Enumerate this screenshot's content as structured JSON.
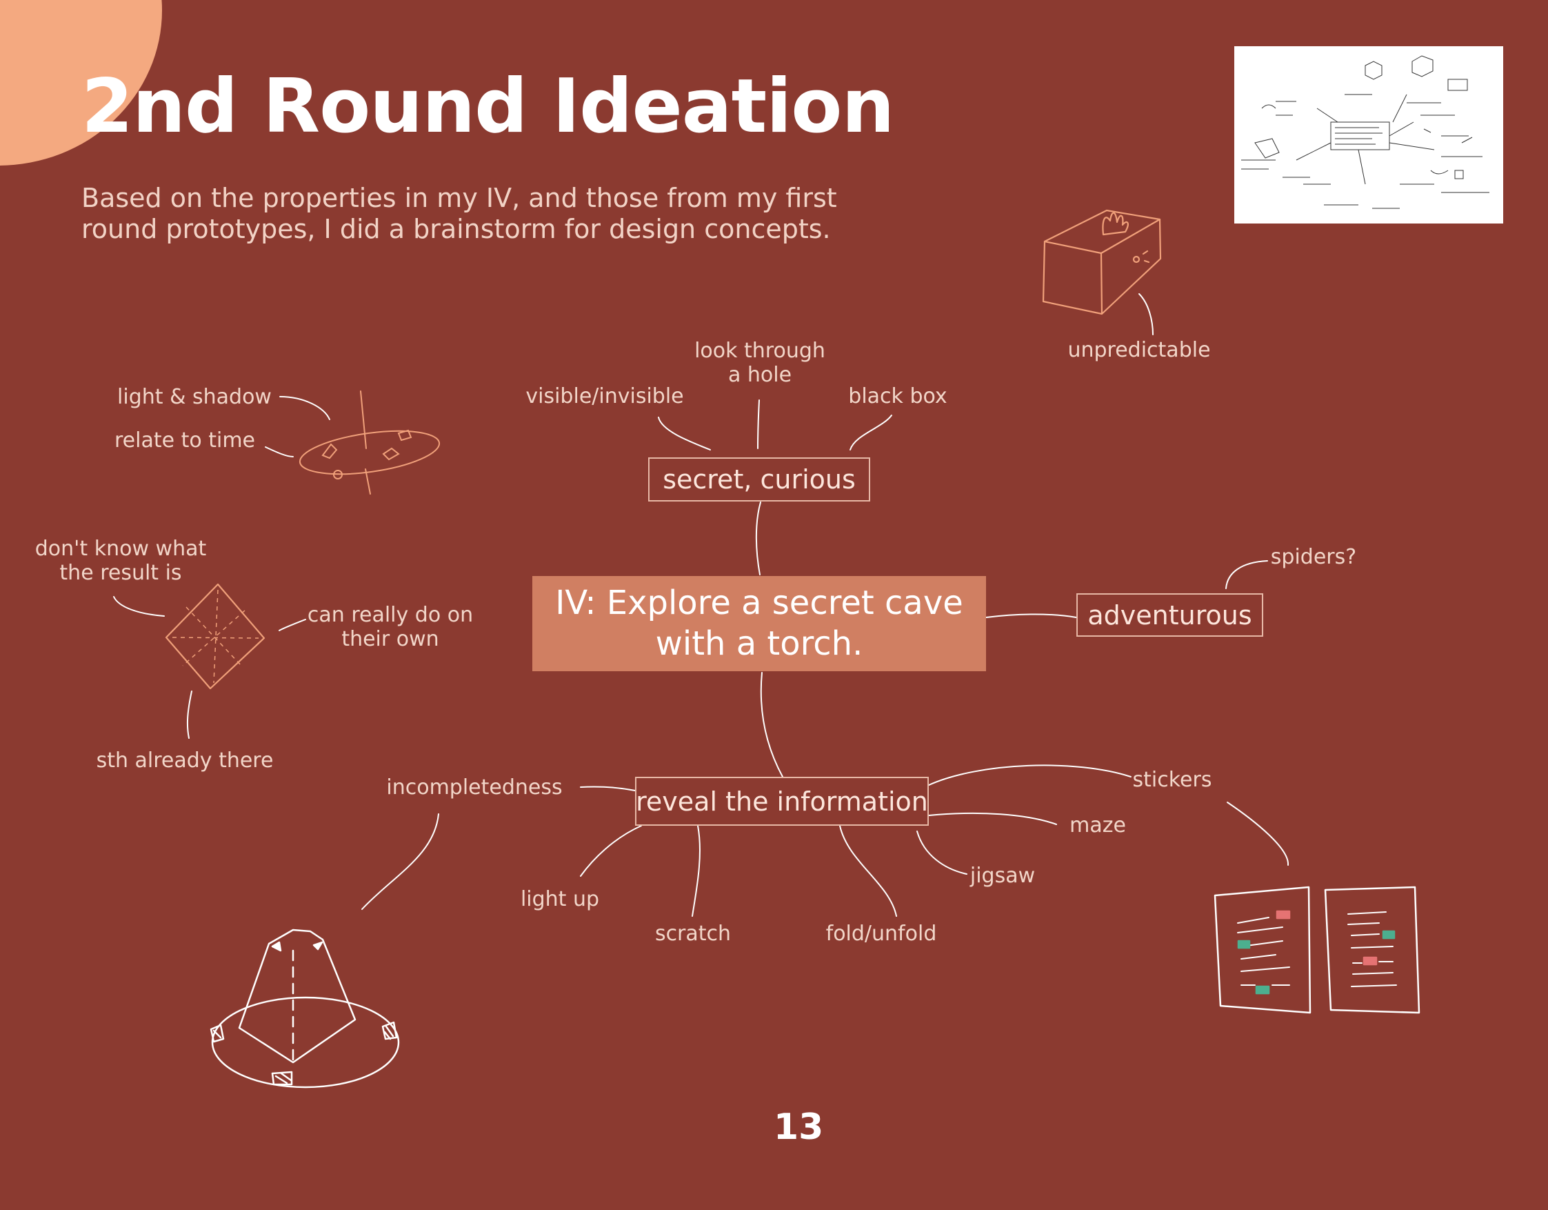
{
  "title": "2nd Round Ideation",
  "intro": "Based on the properties in my IV, and those from my first round prototypes,  I did a brainstorm for design concepts.",
  "central_node": {
    "line1": "IV: Explore a secret cave",
    "line2": "with a torch."
  },
  "nodes": {
    "secret": "secret, curious",
    "adventurous": "adventurous",
    "reveal": "reveal the information"
  },
  "labels": {
    "visible_invisible": "visible/invisible",
    "look_through_1": "look through",
    "look_through_2": "a hole",
    "black_box": "black box",
    "unpredictable": "unpredictable",
    "light_shadow": "light & shadow",
    "relate_time": "relate to time",
    "dont_know_1": "don't know what",
    "dont_know_2": "the result is",
    "can_really_1": "can really do on",
    "can_really_2": "their own",
    "sth_already": "sth already there",
    "spiders": "spiders?",
    "incompleteness": "incompletedness",
    "light_up": "light up",
    "scratch": "scratch",
    "fold_unfold": "fold/unfold",
    "jigsaw": "jigsaw",
    "maze": "maze",
    "stickers": "stickers"
  },
  "page_number": "13",
  "colors": {
    "background": "#8b3a30",
    "accent_circle": "#f4a980",
    "central_fill": "#d07f62",
    "sketch_line": "#f0a07a",
    "connector": "#ffffff"
  },
  "icons": {
    "black_box_sketch": "box-with-hand-icon",
    "sundial_sketch": "sundial-icon",
    "envelope_sketch": "folded-envelope-icon",
    "pyramid_sketch": "pyramid-lamp-icon",
    "booklet_sketch": "open-booklet-icon",
    "brainstorm_thumbnail": "brainstorm-photo-thumbnail"
  }
}
